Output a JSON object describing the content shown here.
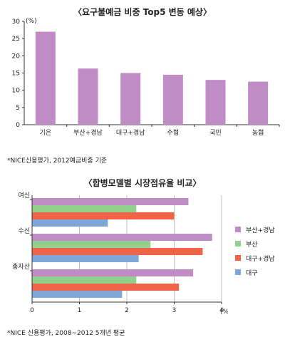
{
  "chart_data": [
    {
      "type": "bar",
      "title": "〈요구불예금 비중 Top5 변동 예상〉",
      "ylabel": "(%)",
      "xlabel": "",
      "categories": [
        "기은",
        "부산+경남",
        "대구+경남",
        "수협",
        "국민",
        "농협"
      ],
      "values": [
        27,
        16.3,
        15,
        14.5,
        13,
        12.5
      ],
      "ylim": [
        0,
        30
      ],
      "yticks": [
        0,
        5,
        10,
        15,
        20,
        25,
        30
      ],
      "grid": false,
      "color": "#bf8cc5",
      "note": "*NICE신용평가, 2012예금비중 기준"
    },
    {
      "type": "bar",
      "orientation": "horizontal",
      "title": "〈합병모델별 시장점유율 비교〉",
      "xlabel": "(%)",
      "ylabel": "",
      "categories": [
        "여신",
        "수신",
        "총자산"
      ],
      "series": [
        {
          "name": "부산+경남",
          "values": [
            3.3,
            3.8,
            3.4
          ],
          "color": "#bf8cc5"
        },
        {
          "name": "부산",
          "values": [
            2.2,
            2.5,
            2.2
          ],
          "color": "#92d18b"
        },
        {
          "name": "대구+경남",
          "values": [
            3.0,
            3.6,
            3.1
          ],
          "color": "#ef6349"
        },
        {
          "name": "대구",
          "values": [
            1.6,
            2.25,
            1.9
          ],
          "color": "#7ea7d8"
        }
      ],
      "xlim": [
        0,
        4
      ],
      "xticks": [
        0,
        1,
        2,
        3,
        4
      ],
      "grid": true,
      "legend": "right",
      "note": "*NICE 신용평가, 2008~2012 5개년 평균"
    }
  ]
}
